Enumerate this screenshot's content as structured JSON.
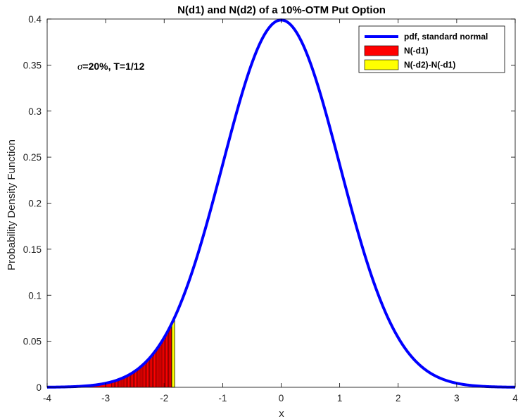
{
  "chart_data": {
    "type": "area",
    "title": "N(d1) and N(d2) of a 10%-OTM Put Option",
    "xlabel": "x",
    "ylabel": "Probability Density Function",
    "xlim": [
      -4,
      4
    ],
    "ylim": [
      0,
      0.4
    ],
    "x_ticks": [
      "-4",
      "-3",
      "-2",
      "-1",
      "0",
      "1",
      "2",
      "3",
      "4"
    ],
    "y_ticks": [
      "0",
      "0.05",
      "0.1",
      "0.15",
      "0.2",
      "0.25",
      "0.3",
      "0.35",
      "0.4"
    ],
    "grid": false,
    "legend_position": "top-right",
    "annotation": {
      "sigma_symbol": "σ",
      "text": "=20%, T=1/12"
    },
    "series": [
      {
        "name": "pdf, standard normal",
        "kind": "line",
        "color": "#0000ff",
        "function": "standard normal pdf",
        "x": [
          -4,
          -3.5,
          -3,
          -2.5,
          -2,
          -1.85,
          -1.5,
          -1,
          -0.5,
          0,
          0.5,
          1,
          1.5,
          2,
          2.5,
          3,
          3.5,
          4
        ],
        "values": [
          0.0001,
          0.0009,
          0.0044,
          0.0175,
          0.054,
          0.0721,
          0.1295,
          0.242,
          0.3521,
          0.3989,
          0.3521,
          0.242,
          0.1295,
          0.054,
          0.0175,
          0.0044,
          0.0009,
          0.0001
        ]
      },
      {
        "name": "N(-d1)",
        "kind": "filled area under pdf",
        "color": "#ff0000",
        "x_range": [
          -4,
          -1.87
        ]
      },
      {
        "name": "N(-d2)-N(-d1)",
        "kind": "filled area under pdf",
        "color": "#ffff00",
        "x_range": [
          -1.87,
          -1.82
        ]
      }
    ]
  }
}
